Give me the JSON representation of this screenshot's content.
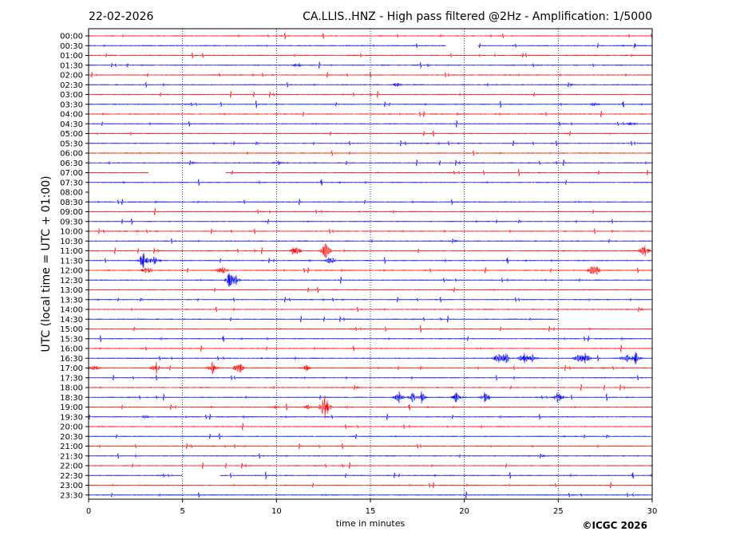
{
  "header": {
    "date": "22-02-2026",
    "title": "CA.LLIS..HNZ - High pass filtered @2Hz - Amplification: 1/5000"
  },
  "copyright": "©ICGC 2026",
  "colors": {
    "red_trace": "#ff0000",
    "blue_trace": "#0000ff",
    "grid": "#000080"
  },
  "chart_data": {
    "type": "line",
    "title": "CA.LLIS..HNZ - High pass filtered @2Hz - Amplification: 1/5000",
    "xlabel": "time in minutes",
    "ylabel": "UTC (local time = UTC + 01:00)",
    "xlim": [
      0,
      30
    ],
    "x_ticks": [
      "0",
      "5",
      "10",
      "15",
      "20",
      "25",
      "30"
    ],
    "x_tick_values": [
      0,
      5,
      10,
      15,
      20,
      25,
      30
    ],
    "grid": "vertical dotted at 5-minute intervals",
    "rows": [
      "00:00",
      "00:30",
      "01:00",
      "01:30",
      "02:00",
      "02:30",
      "03:00",
      "03:30",
      "04:00",
      "04:30",
      "05:00",
      "05:30",
      "06:00",
      "06:30",
      "07:00",
      "07:30",
      "08:00",
      "08:30",
      "09:00",
      "09:30",
      "10:00",
      "10:30",
      "11:00",
      "11:30",
      "12:00",
      "12:30",
      "13:00",
      "13:30",
      "14:00",
      "14:30",
      "15:00",
      "15:30",
      "16:00",
      "16:30",
      "17:00",
      "17:30",
      "18:00",
      "18:30",
      "19:00",
      "19:30",
      "20:00",
      "20:30",
      "21:00",
      "21:30",
      "22:00",
      "22:30",
      "23:00",
      "23:30"
    ],
    "row_colors": "alternating red (even rows) / blue (odd rows)",
    "gaps": [
      {
        "row": "00:30",
        "x": [
          19.0,
          20.7
        ]
      },
      {
        "row": "07:00",
        "x": [
          3.2,
          7.3
        ]
      },
      {
        "row": "08:00",
        "x": [
          0.0,
          30.0
        ]
      },
      {
        "row": "14:30",
        "x": [
          25.0,
          30.0
        ]
      },
      {
        "row": "22:30",
        "x": [
          5.0,
          7.0
        ]
      }
    ],
    "events": [
      {
        "row": "11:00",
        "x": 11.0,
        "amp": 10
      },
      {
        "row": "11:00",
        "x": 12.6,
        "amp": 11
      },
      {
        "row": "11:00",
        "x": 29.6,
        "amp": 9
      },
      {
        "row": "11:30",
        "x": 2.9,
        "amp": 12
      },
      {
        "row": "11:30",
        "x": 3.5,
        "amp": 8
      },
      {
        "row": "11:30",
        "x": 12.9,
        "amp": 6
      },
      {
        "row": "12:00",
        "x": 3.1,
        "amp": 8
      },
      {
        "row": "12:00",
        "x": 7.1,
        "amp": 8
      },
      {
        "row": "12:00",
        "x": 26.9,
        "amp": 16
      },
      {
        "row": "12:30",
        "x": 7.5,
        "amp": 12
      },
      {
        "row": "12:30",
        "x": 7.8,
        "amp": 9
      },
      {
        "row": "14:30",
        "x": 27.5,
        "amp": 2
      },
      {
        "row": "16:30",
        "x": 21.8,
        "amp": 8
      },
      {
        "row": "16:30",
        "x": 22.2,
        "amp": 9
      },
      {
        "row": "16:30",
        "x": 23.2,
        "amp": 10
      },
      {
        "row": "16:30",
        "x": 23.6,
        "amp": 8
      },
      {
        "row": "16:30",
        "x": 26.1,
        "amp": 8
      },
      {
        "row": "16:30",
        "x": 26.4,
        "amp": 10
      },
      {
        "row": "16:30",
        "x": 28.6,
        "amp": 8
      },
      {
        "row": "16:30",
        "x": 29.1,
        "amp": 9
      },
      {
        "row": "17:00",
        "x": 0.3,
        "amp": 7
      },
      {
        "row": "17:00",
        "x": 3.6,
        "amp": 9
      },
      {
        "row": "17:00",
        "x": 6.6,
        "amp": 9
      },
      {
        "row": "17:00",
        "x": 8.0,
        "amp": 10
      },
      {
        "row": "17:00",
        "x": 11.6,
        "amp": 5
      },
      {
        "row": "18:30",
        "x": 16.5,
        "amp": 9
      },
      {
        "row": "18:30",
        "x": 17.3,
        "amp": 8
      },
      {
        "row": "18:30",
        "x": 17.7,
        "amp": 9
      },
      {
        "row": "18:30",
        "x": 19.6,
        "amp": 8
      },
      {
        "row": "18:30",
        "x": 21.1,
        "amp": 9
      },
      {
        "row": "18:30",
        "x": 25.0,
        "amp": 9
      },
      {
        "row": "19:00",
        "x": 10.0,
        "amp": 3
      },
      {
        "row": "19:00",
        "x": 11.7,
        "amp": 4
      },
      {
        "row": "19:00",
        "x": 12.6,
        "amp": 22
      },
      {
        "row": "19:30",
        "x": 3.0,
        "amp": 3
      },
      {
        "row": "04:30",
        "x": 28.9,
        "amp": 3
      },
      {
        "row": "06:30",
        "x": 10.1,
        "amp": 3
      },
      {
        "row": "03:30",
        "x": 26.9,
        "amp": 3
      },
      {
        "row": "02:30",
        "x": 16.4,
        "amp": 3
      },
      {
        "row": "01:30",
        "x": 11.1,
        "amp": 3
      }
    ]
  }
}
